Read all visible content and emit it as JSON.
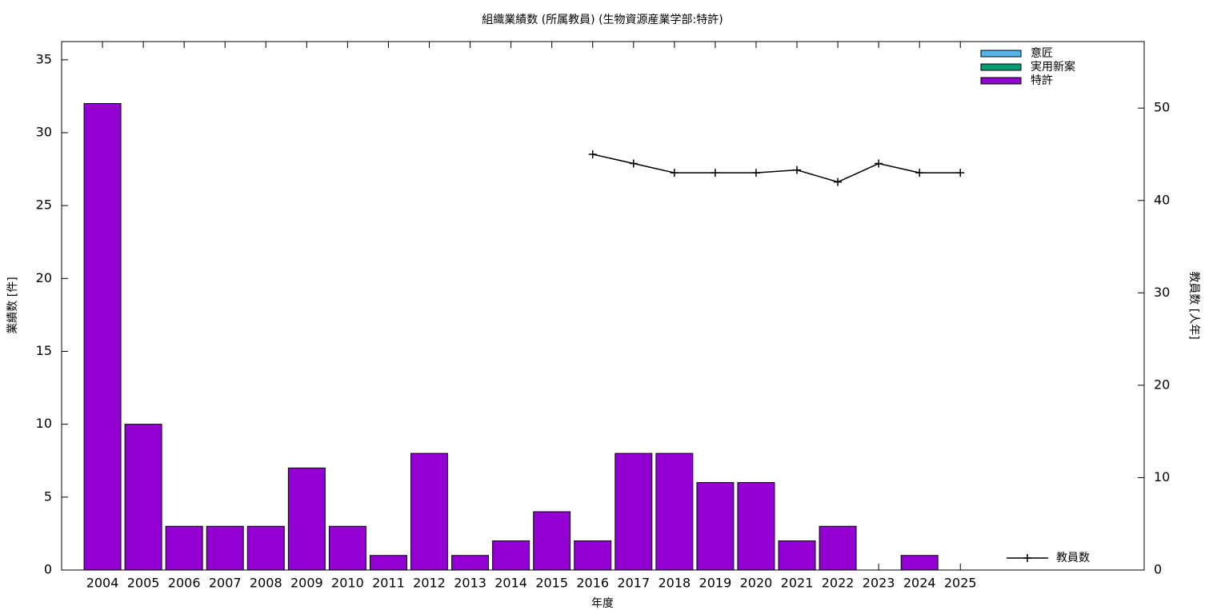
{
  "chart_data": {
    "type": "bar",
    "stacked": true,
    "title": "組織業績数 (所属教員) (生物資源産業学部:特許)",
    "xlabel": "年度",
    "ylabel": "業績数 [件]",
    "y2label": "教員数 [人年]",
    "categories": [
      "2004",
      "2005",
      "2006",
      "2007",
      "2008",
      "2009",
      "2010",
      "2011",
      "2012",
      "2013",
      "2014",
      "2015",
      "2016",
      "2017",
      "2018",
      "2019",
      "2020",
      "2021",
      "2022",
      "2023",
      "2024",
      "2025"
    ],
    "series": [
      {
        "name": "意匠",
        "color": "#56b4e9",
        "values": [
          0,
          0,
          0,
          0,
          0,
          0,
          0,
          0,
          0,
          0,
          0,
          0,
          0,
          0,
          0,
          0,
          0,
          0,
          0,
          0,
          0,
          0
        ]
      },
      {
        "name": "実用新案",
        "color": "#009e73",
        "values": [
          0,
          0,
          0,
          0,
          0,
          0,
          0,
          0,
          0,
          0,
          0,
          0,
          0,
          0,
          0,
          0,
          0,
          0,
          0,
          0,
          0,
          0
        ]
      },
      {
        "name": "特許",
        "color": "#9400d3",
        "values": [
          32,
          10,
          3,
          3,
          3,
          7,
          3,
          1,
          8,
          1,
          2,
          4,
          2,
          8,
          8,
          6,
          6,
          2,
          3,
          0,
          1,
          0
        ]
      },
      {
        "name": "教員数",
        "color": "#000000",
        "axis": "y2",
        "type": "line",
        "values": [
          null,
          null,
          null,
          null,
          null,
          null,
          null,
          null,
          null,
          null,
          null,
          null,
          45,
          44,
          43,
          43,
          43,
          43.3,
          42,
          44,
          43,
          43
        ]
      }
    ],
    "ylim": [
      0,
      36.25
    ],
    "yticks": [
      0,
      5,
      10,
      15,
      20,
      25,
      30,
      35
    ],
    "y2lim": [
      0,
      57.2
    ],
    "y2ticks": [
      0,
      10,
      20,
      30,
      40,
      50
    ],
    "legend": "top-right"
  }
}
